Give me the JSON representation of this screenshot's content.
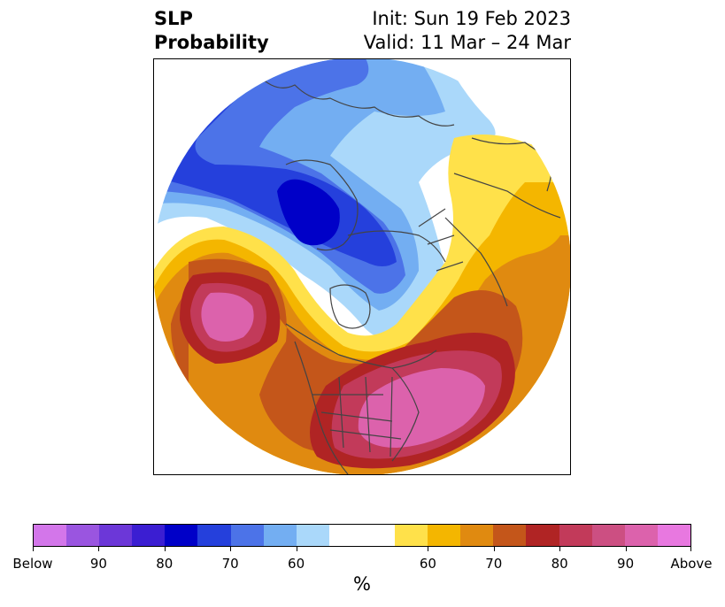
{
  "title": {
    "left_line1": "SLP",
    "left_line2": "Probability",
    "right_line1": "Init: Sun 19 Feb 2023",
    "right_line2": "Valid: 11 Mar – 24 Mar"
  },
  "colorbar": {
    "colors": [
      "#d376ea",
      "#9a55e0",
      "#6c37d8",
      "#3b1ed2",
      "#0000c8",
      "#2540dc",
      "#4c73e8",
      "#73aef2",
      "#aad8fa",
      "#ffffff",
      "#ffffff",
      "#ffe14a",
      "#f4b600",
      "#e08a10",
      "#c4561a",
      "#b02424",
      "#c23a5a",
      "#cc4f82",
      "#dc62ac",
      "#e878e0"
    ],
    "labels": [
      "Below",
      "90",
      "80",
      "70",
      "60",
      "60",
      "70",
      "80",
      "90",
      "Above"
    ],
    "unit": "%"
  },
  "map": {
    "projection": "north-polar-stereographic",
    "region": "Northern Hemisphere (North America / Arctic / Europe)",
    "layers": {
      "below": [
        "#aad8fa",
        "#73aef2",
        "#4c73e8",
        "#2540dc",
        "#0000c8"
      ],
      "above": [
        "#ffe14a",
        "#f4b600",
        "#e08a10",
        "#c4561a",
        "#b02424",
        "#c23a5a",
        "#dc62ac"
      ]
    }
  }
}
